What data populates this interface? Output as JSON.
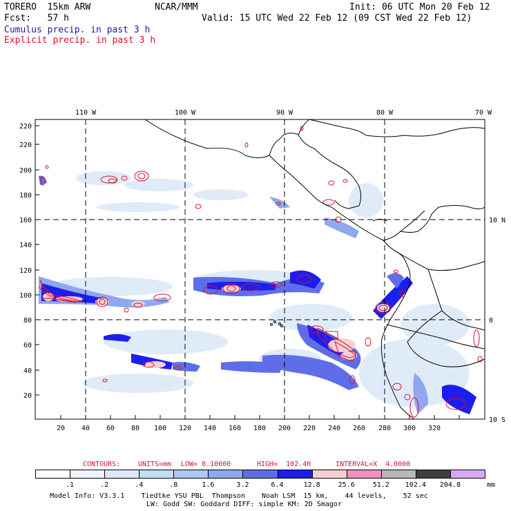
{
  "header": {
    "model": "TORERO  15km ARW",
    "org": "NCAR/MMM",
    "init": "Init: 06 UTC Mon 20 Feb 12",
    "fcst": "Fcst:   57 h",
    "valid": "Valid: 15 UTC Wed 22 Feb 12 (09 CST Wed 22 Feb 12)",
    "legend_cumulus": "Cumulus precip. in past 3 h",
    "legend_explicit": "Explicit precip. in past 3 h"
  },
  "map": {
    "top_lon_labels": [
      "110 W",
      "100 W",
      "90 W",
      "80 W",
      "70 W"
    ],
    "right_lat_labels": [
      "10 N",
      "0",
      "10 S"
    ],
    "x_ticks": [
      "20",
      "40",
      "60",
      "80",
      "100",
      "120",
      "140",
      "160",
      "180",
      "200",
      "220",
      "240",
      "260",
      "280",
      "300",
      "320"
    ],
    "y_ticks": [
      "20",
      "40",
      "60",
      "80",
      "100",
      "120",
      "140",
      "160",
      "180",
      "200",
      "220"
    ]
  },
  "contours": {
    "label": "CONTOURS:",
    "units": "UNITS=mm",
    "low": "LOW= 0.10000",
    "high": "HIGH=  102.40",
    "interval": "INTERVAL=X  4.0000"
  },
  "colorbar": {
    "unit": "mm",
    "labels": [
      ".1",
      ".2",
      ".4",
      ".8",
      "1.6",
      "3.2",
      "6.4",
      "12.8",
      "25.6",
      "51.2",
      "102.4",
      "204.8"
    ],
    "colors": [
      "#ffffff",
      "#eef4fc",
      "#dde9f8",
      "#c6dbf5",
      "#aec8f2",
      "#8fa8ee",
      "#5f6ee8",
      "#1c1ef0",
      "#f8cfd4",
      "#f090bc",
      "#b8b8b8",
      "#404040",
      "#d8a8f4"
    ]
  },
  "footer": {
    "line1": "Model Info: V3.3.1    Tiedtke YSU PBL  Thompson    Noah LSM  15 km,    44 levels,    52 sec",
    "line2": "LW: Godd SW: Goddard DIFF: simple KM: 2D Smagor"
  }
}
